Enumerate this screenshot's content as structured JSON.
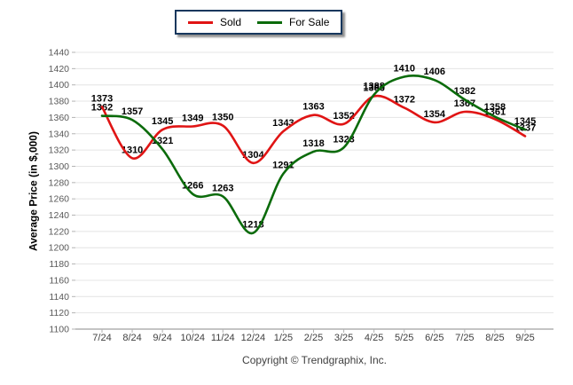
{
  "legend": {
    "items": [
      {
        "label": "Sold",
        "color": "#e01414"
      },
      {
        "label": "For Sale",
        "color": "#0b6b0b"
      }
    ]
  },
  "footer": {
    "copyright": "Copyright © Trendgraphix, Inc."
  },
  "chart_data": {
    "type": "line",
    "title": "",
    "xlabel": "",
    "ylabel": "Average Price (in $,000)",
    "categories": [
      "7/24",
      "8/24",
      "9/24",
      "10/24",
      "11/24",
      "12/24",
      "1/25",
      "2/25",
      "3/25",
      "4/25",
      "5/25",
      "6/25",
      "7/25",
      "8/25",
      "9/25"
    ],
    "series": [
      {
        "name": "Sold",
        "color": "#e01414",
        "values": [
          1373,
          1310,
          1345,
          1349,
          1350,
          1304,
          1343,
          1363,
          1352,
          1386,
          1372,
          1354,
          1367,
          1358,
          1337
        ]
      },
      {
        "name": "For Sale",
        "color": "#0b6b0b",
        "values": [
          1362,
          1357,
          1321,
          1266,
          1263,
          1218,
          1291,
          1318,
          1323,
          1388,
          1410,
          1406,
          1382,
          1361,
          1345
        ]
      }
    ],
    "ylim": [
      1100,
      1440
    ],
    "ytick_step": 20,
    "grid": true,
    "legend_position": "top",
    "label_adjust": {
      "Sold": {
        "13": [
          0,
          -4
        ]
      },
      "For Sale": {
        "13": [
          0,
          4
        ]
      }
    }
  }
}
